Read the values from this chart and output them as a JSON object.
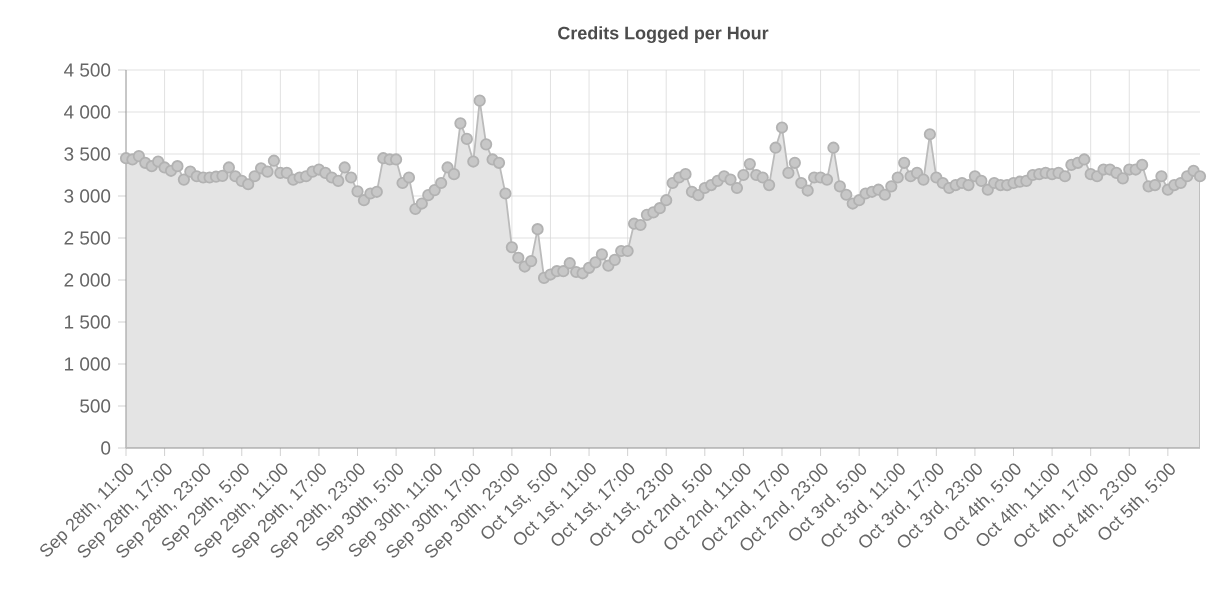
{
  "chart_data": {
    "type": "area",
    "title": "Credits Logged per Hour",
    "categories": [
      "Sep 28th, 11:00",
      null,
      null,
      null,
      null,
      null,
      "Sep 28th, 17:00",
      null,
      null,
      null,
      null,
      null,
      "Sep 28th, 23:00",
      null,
      null,
      null,
      null,
      null,
      "Sep 29th, 5:00",
      null,
      null,
      null,
      null,
      null,
      "Sep 29th, 11:00",
      null,
      null,
      null,
      null,
      null,
      "Sep 29th, 17:00",
      null,
      null,
      null,
      null,
      null,
      "Sep 29th, 23:00",
      null,
      null,
      null,
      null,
      null,
      "Sep 30th, 5:00",
      null,
      null,
      null,
      null,
      null,
      "Sep 30th, 11:00",
      null,
      null,
      null,
      null,
      null,
      "Sep 30th, 17:00",
      null,
      null,
      null,
      null,
      null,
      "Sep 30th, 23:00",
      null,
      null,
      null,
      null,
      null,
      "Oct 1st, 5:00",
      null,
      null,
      null,
      null,
      null,
      "Oct 1st, 11:00",
      null,
      null,
      null,
      null,
      null,
      "Oct 1st, 17:00",
      null,
      null,
      null,
      null,
      null,
      "Oct 1st, 23:00",
      null,
      null,
      null,
      null,
      null,
      "Oct 2nd, 5:00",
      null,
      null,
      null,
      null,
      null,
      "Oct 2nd, 11:00",
      null,
      null,
      null,
      null,
      null,
      "Oct 2nd, 17:00",
      null,
      null,
      null,
      null,
      null,
      "Oct 2nd, 23:00",
      null,
      null,
      null,
      null,
      null,
      "Oct 3rd, 5:00",
      null,
      null,
      null,
      null,
      null,
      "Oct 3rd, 11:00",
      null,
      null,
      null,
      null,
      null,
      "Oct 3rd, 17:00",
      null,
      null,
      null,
      null,
      null,
      "Oct 3rd, 23:00",
      null,
      null,
      null,
      null,
      null,
      "Oct 4th, 5:00",
      null,
      null,
      null,
      null,
      null,
      "Oct 4th, 11:00",
      null,
      null,
      null,
      null,
      null,
      "Oct 4th, 17:00",
      null,
      null,
      null,
      null,
      null,
      "Oct 4th, 23:00",
      null,
      null,
      null,
      null,
      null,
      "Oct 5th, 5:00",
      null,
      null,
      null,
      null,
      null
    ],
    "values": [
      3450,
      3435,
      3475,
      3395,
      3355,
      3410,
      3340,
      3300,
      3355,
      3195,
      3290,
      3235,
      3220,
      3220,
      3230,
      3240,
      3340,
      3235,
      3180,
      3140,
      3235,
      3330,
      3290,
      3420,
      3275,
      3275,
      3195,
      3220,
      3235,
      3290,
      3315,
      3275,
      3220,
      3180,
      3340,
      3220,
      3055,
      2950,
      3030,
      3050,
      3450,
      3435,
      3435,
      3155,
      3220,
      2845,
      2910,
      3010,
      3070,
      3155,
      3340,
      3260,
      3865,
      3680,
      3410,
      4135,
      3615,
      3435,
      3395,
      3030,
      2390,
      2265,
      2160,
      2225,
      2605,
      2025,
      2065,
      2105,
      2105,
      2200,
      2095,
      2080,
      2145,
      2210,
      2305,
      2170,
      2240,
      2345,
      2345,
      2670,
      2655,
      2775,
      2805,
      2855,
      2950,
      3155,
      3220,
      3260,
      3050,
      3010,
      3095,
      3130,
      3180,
      3235,
      3195,
      3095,
      3250,
      3380,
      3250,
      3220,
      3130,
      3575,
      3815,
      3275,
      3395,
      3155,
      3065,
      3220,
      3220,
      3195,
      3575,
      3115,
      3015,
      2910,
      2950,
      3030,
      3050,
      3075,
      3015,
      3115,
      3220,
      3395,
      3235,
      3275,
      3195,
      3735,
      3220,
      3155,
      3095,
      3130,
      3155,
      3130,
      3235,
      3180,
      3075,
      3155,
      3130,
      3130,
      3155,
      3170,
      3180,
      3250,
      3260,
      3275,
      3260,
      3275,
      3235,
      3370,
      3395,
      3435,
      3260,
      3235,
      3315,
      3315,
      3275,
      3210,
      3315,
      3315,
      3370,
      3115,
      3130,
      3235,
      3075,
      3130,
      3155,
      3235,
      3300,
      3235
    ],
    "color": "#bbbbbb",
    "marker": "circle",
    "line_style": "solid",
    "grid": true,
    "ylim": [
      0,
      4500
    ],
    "yticks": [
      0,
      500,
      {
        "value": 1000,
        "label": "1 000"
      },
      {
        "value": 1500,
        "label": "1 500"
      },
      {
        "value": 2000,
        "label": "2 000"
      },
      {
        "value": 2500,
        "label": "2 500"
      },
      {
        "value": 3000,
        "label": "3 000"
      },
      {
        "value": 3500,
        "label": "3 500"
      },
      {
        "value": 4000,
        "label": "4 000"
      },
      {
        "value": 4500,
        "label": "4 500"
      }
    ]
  }
}
